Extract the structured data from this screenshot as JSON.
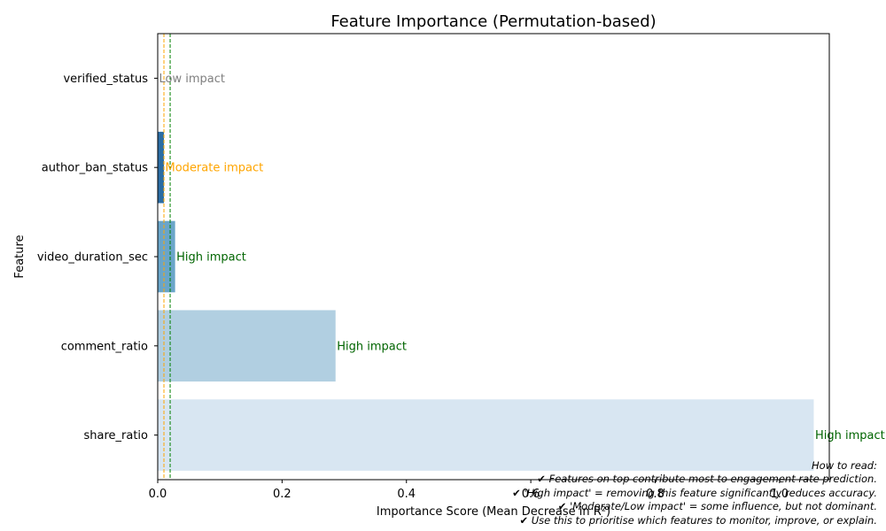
{
  "chart_data": {
    "type": "bar",
    "orientation": "horizontal",
    "title": "Feature Importance (Permutation-based)",
    "xlabel": "Importance Score (Mean Decrease in R²)",
    "ylabel": "Feature",
    "xlim": [
      0,
      1.08
    ],
    "xticks": [
      "0.0",
      "0.2",
      "0.4",
      "0.6",
      "0.8",
      "1.0"
    ],
    "xtick_values": [
      0,
      0.2,
      0.4,
      0.6,
      0.8,
      1.0
    ],
    "categories": [
      "verified_status",
      "author_ban_status",
      "video_duration_sec",
      "comment_ratio",
      "share_ratio"
    ],
    "values": [
      0.0,
      0.01,
      0.028,
      0.286,
      1.055
    ],
    "bar_colors": [
      "#08306b",
      "#2c6da4",
      "#6aa5c9",
      "#b1cfe1",
      "#d8e6f2"
    ],
    "annotations": [
      "Low impact",
      "Moderate impact",
      "High impact",
      "High impact",
      "High impact"
    ],
    "annotation_colors": [
      "#808080",
      "#ffa500",
      "#006400",
      "#006400",
      "#006400"
    ],
    "thresholds": [
      {
        "value": 0.01,
        "color": "#ffa500",
        "style": "dashed"
      },
      {
        "value": 0.02,
        "color": "#008000",
        "style": "dashed"
      }
    ],
    "grid": false,
    "legend": "none"
  },
  "howto": {
    "lines": [
      "How to read:",
      "✔ Features on top contribute most to engagement rate prediction.",
      "✔ 'High impact' = removing this feature significantly reduces accuracy.",
      "✔ 'Moderate/Low impact' = some influence, but not dominant.",
      "✔ Use this to prioritise which features to monitor, improve, or explain."
    ]
  }
}
